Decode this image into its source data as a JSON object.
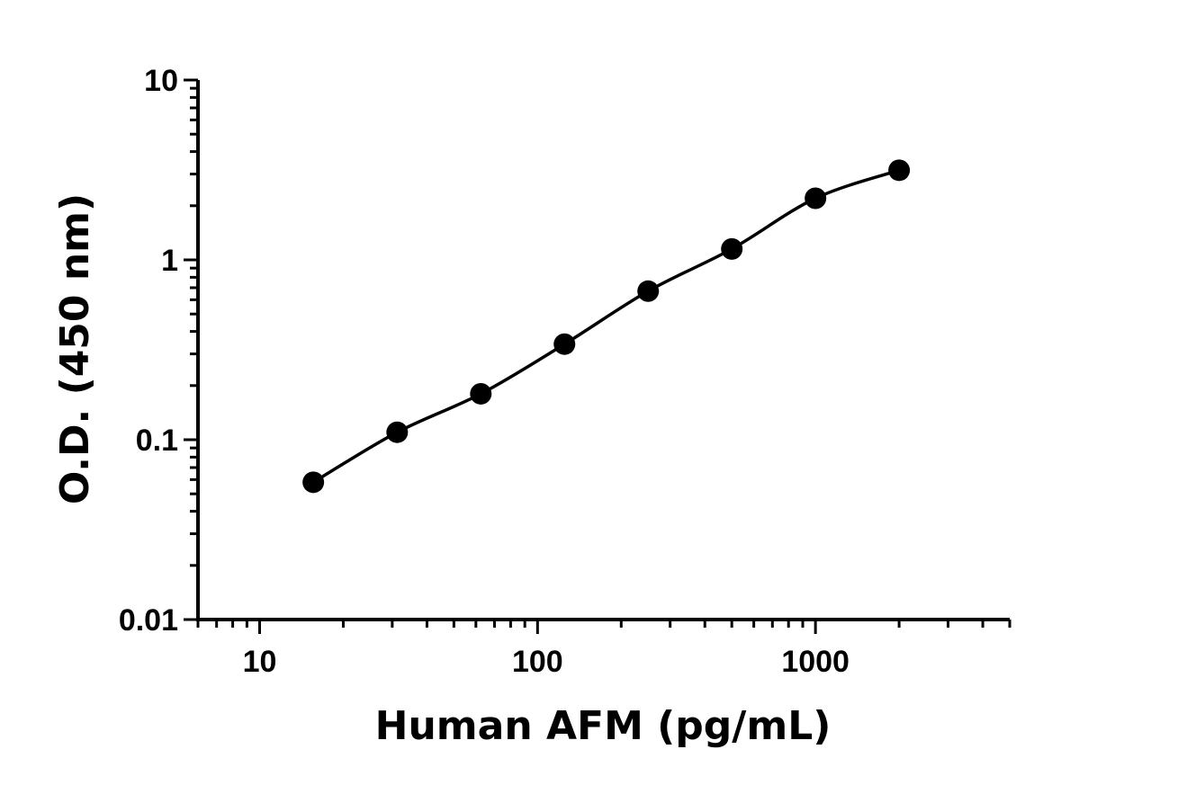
{
  "chart_data": {
    "type": "scatter",
    "title": "",
    "xlabel": "Human AFM (pg/mL)",
    "ylabel": "O.D. (450 nm)",
    "xscale": "log",
    "yscale": "log",
    "xlim": [
      6,
      5000
    ],
    "ylim": [
      0.01,
      10
    ],
    "xticks": [
      {
        "value": 10,
        "label": "10"
      },
      {
        "value": 100,
        "label": "100"
      },
      {
        "value": 1000,
        "label": "1000"
      }
    ],
    "yticks": [
      {
        "value": 0.01,
        "label": "0.01"
      },
      {
        "value": 0.1,
        "label": "0.1"
      },
      {
        "value": 1,
        "label": "1"
      },
      {
        "value": 10,
        "label": "10"
      }
    ],
    "series": [
      {
        "x": [
          15.6,
          31.25,
          62.5,
          125,
          250,
          500,
          1000,
          2000
        ],
        "y": [
          0.058,
          0.11,
          0.18,
          0.34,
          0.67,
          1.15,
          2.2,
          3.15
        ]
      }
    ],
    "fit_curve": true,
    "grid": false,
    "legend": "none"
  }
}
